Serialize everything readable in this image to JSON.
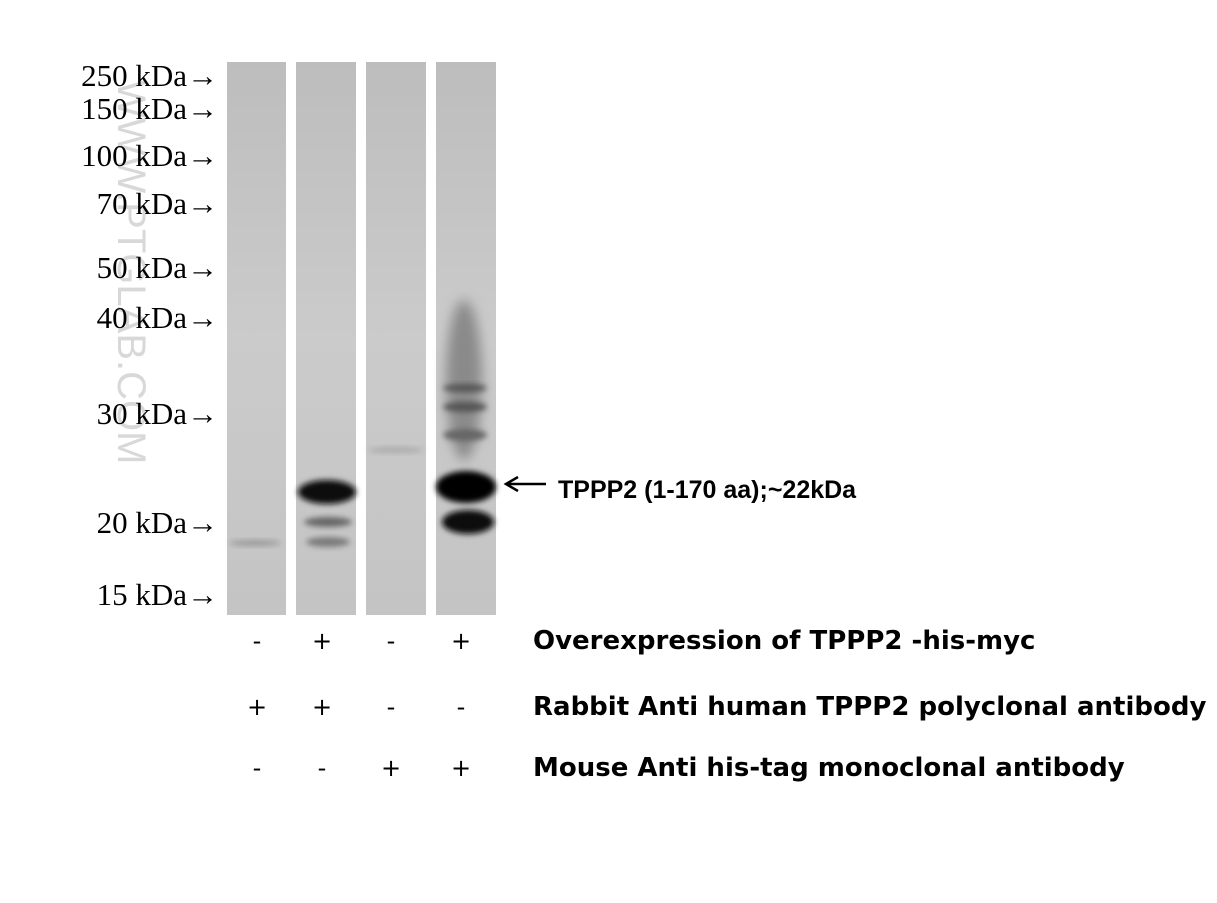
{
  "markers": [
    "250 kDa→",
    "150 kDa→",
    "100 kDa→",
    "70 kDa→",
    "50 kDa→",
    "40 kDa→",
    "30 kDa→",
    "20 kDa→",
    "15 kDa→"
  ],
  "band_label": "TPPP2 (1-170 aa);~22kDa",
  "watermark": "WWW.PTGLAB.COM",
  "conditions": [
    {
      "label": "Overexpression of TPPP2 -his-myc",
      "lanes": [
        "-",
        "+",
        "-",
        "+"
      ]
    },
    {
      "label": "Rabbit Anti human TPPP2 polyclonal antibody",
      "lanes": [
        "+",
        "+",
        "-",
        "-"
      ]
    },
    {
      "label": "Mouse Anti his-tag monoclonal antibody",
      "lanes": [
        "-",
        "-",
        "+",
        "+"
      ]
    }
  ]
}
